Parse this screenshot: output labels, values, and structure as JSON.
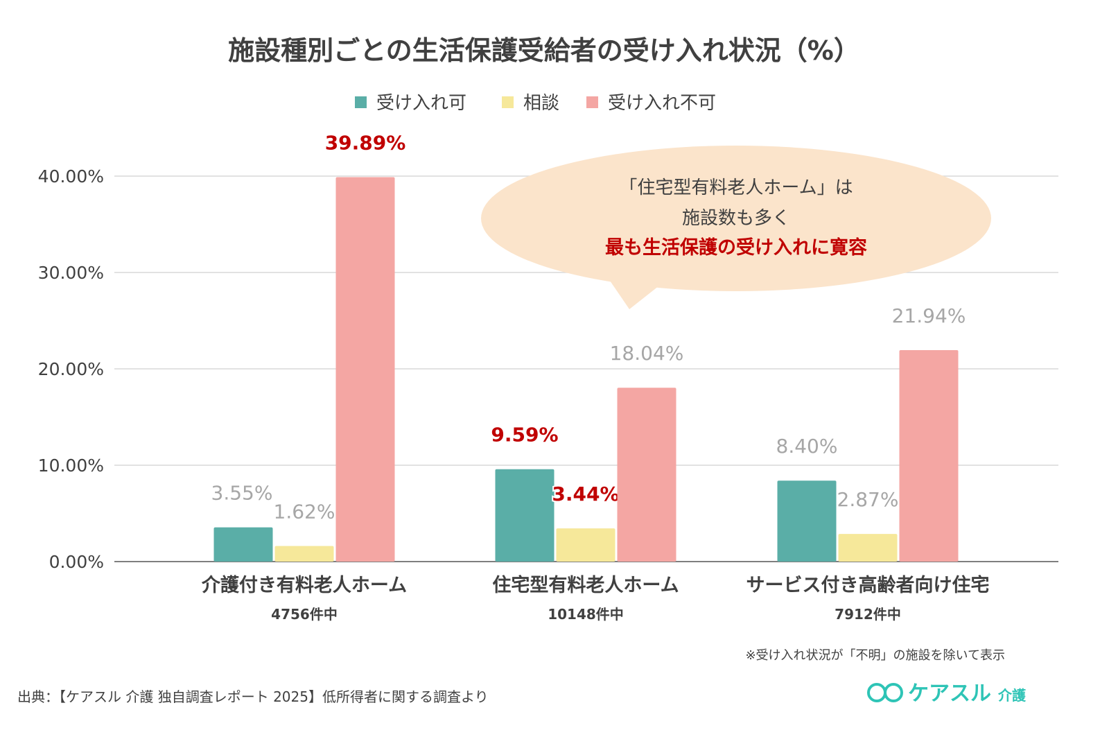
{
  "chart_data": {
    "type": "bar",
    "title": "施設種別ごとの生活保護受給者の受け入れ状況（%）",
    "categories": [
      "介護付き有料老人ホーム",
      "住宅型有料老人ホーム",
      "サービス付き高齢者向け住宅"
    ],
    "category_counts": [
      "4756件中",
      "10148件中",
      "7912件中"
    ],
    "series": [
      {
        "name": "受け入れ可",
        "color": "#5aaea7",
        "values": [
          3.55,
          9.59,
          8.4
        ],
        "labels": [
          "3.55%",
          "9.59%",
          "8.40%"
        ],
        "highlight": [
          false,
          true,
          false
        ]
      },
      {
        "name": "相談",
        "color": "#f6e89a",
        "values": [
          1.62,
          3.44,
          2.87
        ],
        "labels": [
          "1.62%",
          "3.44%",
          "2.87%"
        ],
        "highlight": [
          false,
          true,
          false
        ]
      },
      {
        "name": "受け入れ不可",
        "color": "#f4a6a3",
        "values": [
          39.89,
          18.04,
          21.94
        ],
        "labels": [
          "39.89%",
          "18.04%",
          "21.94%"
        ],
        "highlight": [
          true,
          false,
          false
        ]
      }
    ],
    "ylim": [
      0,
      40
    ],
    "yticks": [
      "0.00%",
      "10.00%",
      "20.00%",
      "30.00%",
      "40.00%"
    ],
    "ytick_values": [
      0,
      10,
      20,
      30,
      40
    ],
    "grid": true,
    "legend": "top-center",
    "xlabel": "",
    "ylabel": ""
  },
  "callout": {
    "line1": "「住宅型有料老人ホーム」は",
    "line2": "施設数も多く",
    "line3": "最も生活保護の受け入れに寛容"
  },
  "note": "※受け入れ状況が「不明」の施設を除いて表示",
  "source": "出典：【ケアスル 介護 独自調査レポート 2025】低所得者に関する調査より",
  "logo": {
    "text": "ケアスル",
    "sub": "介護"
  }
}
